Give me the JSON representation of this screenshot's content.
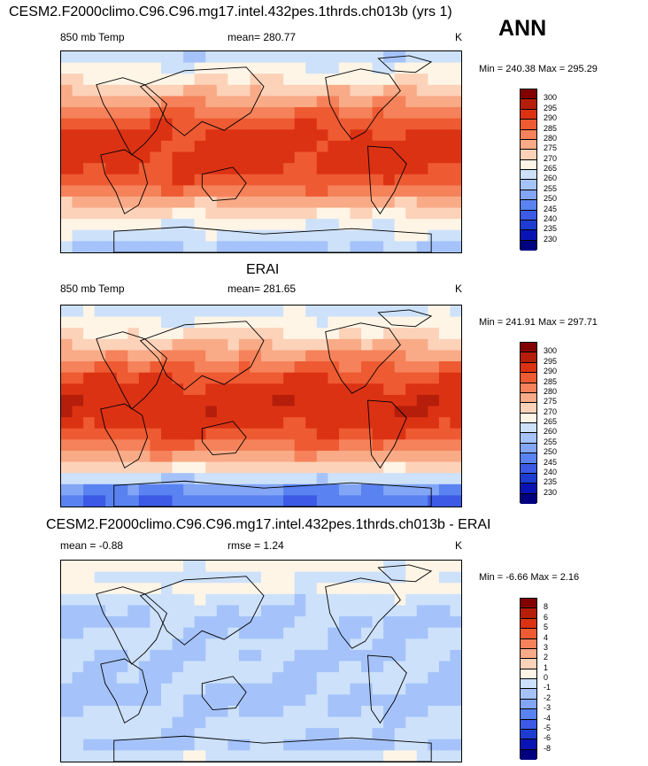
{
  "figure": {
    "season": "ANN"
  },
  "panels": [
    {
      "title": "CESM2.F2000climo.C96.C96.mg17.intel.432pes.1thrds.ch013b (yrs 1)",
      "left_label": "850 mb Temp",
      "center_label": "mean= 280.77",
      "units": "K",
      "range_text": "Min = 240.38 Max = 295.29"
    },
    {
      "title": "ERAI",
      "left_label": "850 mb Temp",
      "center_label": "mean= 281.65",
      "units": "K",
      "range_text": "Min = 241.91 Max = 297.71"
    },
    {
      "title": "CESM2.F2000climo.C96.C96.mg17.intel.432pes.1thrds.ch013b - ERAI",
      "left_label": "mean =  -0.88",
      "center_label": "rmse =   1.24",
      "units": "K",
      "range_text": "Min =  -6.66 Max =   2.16"
    }
  ],
  "chart_data": [
    {
      "type": "heatmap",
      "title": "CESM2.F2000climo.C96.C96.mg17.intel.432pes.1thrds.ch013b (yrs 1)",
      "variable": "850 mb Temp",
      "units": "K",
      "mean": 280.77,
      "min": 240.38,
      "max": 295.29,
      "levels": [
        230,
        235,
        240,
        245,
        250,
        255,
        260,
        265,
        270,
        275,
        280,
        285,
        290,
        295,
        300
      ],
      "colors": [
        "#000080",
        "#0a14b4",
        "#1e3cd2",
        "#3c5ae6",
        "#5a82f0",
        "#82a5f5",
        "#a5c3fa",
        "#cde1fa",
        "#fff5e6",
        "#fcd2b9",
        "#f9aa87",
        "#f5825a",
        "#ee5a32",
        "#dc3214",
        "#b41e0a",
        "#820000"
      ],
      "lat_profile": [
        262,
        266,
        269,
        274,
        279,
        284,
        288,
        291,
        292,
        292,
        291,
        288,
        283,
        277,
        271,
        266,
        263,
        259
      ]
    },
    {
      "type": "heatmap",
      "title": "ERAI",
      "variable": "850 mb Temp",
      "units": "K",
      "mean": 281.65,
      "min": 241.91,
      "max": 297.71,
      "levels": [
        230,
        235,
        240,
        245,
        250,
        255,
        260,
        265,
        270,
        275,
        280,
        285,
        290,
        295,
        300
      ],
      "colors": [
        "#000080",
        "#0a14b4",
        "#1e3cd2",
        "#3c5ae6",
        "#5a82f0",
        "#82a5f5",
        "#a5c3fa",
        "#cde1fa",
        "#fff5e6",
        "#fcd2b9",
        "#f9aa87",
        "#f5825a",
        "#ee5a32",
        "#dc3214",
        "#b41e0a",
        "#820000"
      ],
      "lat_profile": [
        263,
        267,
        270,
        275,
        280,
        285,
        289,
        292,
        293,
        293,
        292,
        289,
        284,
        278,
        272,
        262,
        250,
        246
      ]
    },
    {
      "type": "heatmap",
      "title": "CESM2.F2000climo.C96.C96.mg17.intel.432pes.1thrds.ch013b - ERAI",
      "units": "K",
      "mean": -0.88,
      "rmse": 1.24,
      "min": -6.66,
      "max": 2.16,
      "levels": [
        -8,
        -6,
        -5,
        -4,
        -3,
        -2,
        -1,
        0,
        1,
        2,
        3,
        4,
        5,
        6,
        8
      ],
      "colors": [
        "#000080",
        "#0a14b4",
        "#1e3cd2",
        "#3c5ae6",
        "#5a82f0",
        "#82a5f5",
        "#a5c3fa",
        "#cde1fa",
        "#fff5e6",
        "#fcd2b9",
        "#f9aa87",
        "#f5825a",
        "#ee5a32",
        "#dc3214",
        "#b41e0a",
        "#820000"
      ],
      "lat_profile": [
        0.4,
        -0.3,
        0.4,
        -0.5,
        -0.9,
        -1.2,
        -1.0,
        -0.8,
        -1.1,
        -1.0,
        -0.9,
        -1.1,
        -1.3,
        -1.0,
        -0.6,
        -0.8,
        -1.2,
        -0.3
      ]
    }
  ]
}
